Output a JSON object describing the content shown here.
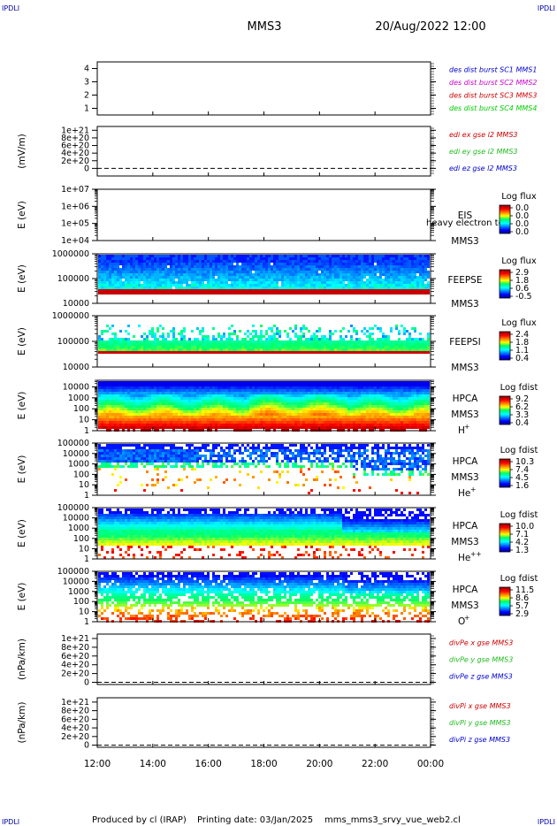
{
  "corner_labels": [
    "IPDLI",
    "IPDLI",
    "IPDLI",
    "IPDLI"
  ],
  "header": {
    "spacecraft": "MMS3",
    "datetime": "20/Aug/2022 12:00"
  },
  "footer": {
    "producer": "Produced by cl (IRAP)",
    "printing": "Printing date: 03/Jan/2025",
    "file": "mms_mms3_srvy_vue_web2.cl"
  },
  "colors": {
    "red": "#cc0000",
    "green": "#22bb22",
    "blue": "#0000cc",
    "magenta": "#cc00cc",
    "lime": "#00cc00"
  },
  "chart_data": [
    {
      "type": "line",
      "ylim": [
        0.5,
        4.5
      ],
      "ytick_labels": [
        "4",
        "3",
        "2",
        "1"
      ],
      "ytick_values": [
        4,
        3,
        2,
        1
      ],
      "legend": [
        {
          "text": "des dist burst SC1 MMS1",
          "color": "#0000cc"
        },
        {
          "text": "des dist burst SC2 MMS2",
          "color": "#cc00cc"
        },
        {
          "text": "des dist burst SC3 MMS3",
          "color": "#cc0000"
        },
        {
          "text": "des dist burst SC4 MMS4",
          "color": "#00cc00"
        }
      ]
    },
    {
      "type": "line",
      "ylabel": "(mV/m)",
      "ylim": [
        -0.2,
        1.1
      ],
      "ytick_labels": [
        "1e+21",
        "8e+20",
        "6e+20",
        "4e+20",
        "2e+20",
        "0"
      ],
      "ytick_values": [
        1.0,
        0.8,
        0.6,
        0.4,
        0.2,
        0
      ],
      "legend": [
        {
          "text": "edi ex gse l2 MMS3",
          "color": "#cc0000"
        },
        {
          "text": "edi ey gse l2 MMS3",
          "color": "#22bb22"
        },
        {
          "text": "edi ez gse l2 MMS3",
          "color": "#0000cc"
        }
      ]
    },
    {
      "type": "heatmap",
      "ylabel": "E (eV)",
      "ylim": [
        10000,
        10000000
      ],
      "ytick_labels": [
        "1e+07",
        "1e+06",
        "1e+05",
        "1e+04"
      ],
      "ytick_values": [
        10000000,
        1000000,
        100000,
        10000
      ],
      "instrument": "EIS",
      "spacecraft": "MMS3",
      "overlay_text": "heavy electron tof",
      "colorbar_title": "Log flux",
      "colorbar_labels": [
        "0.0",
        "0.0",
        "0.0",
        "0.0"
      ],
      "data": "empty"
    },
    {
      "type": "heatmap",
      "ylabel": "E (eV)",
      "ylim": [
        10000,
        1000000
      ],
      "ytick_labels": [
        "1000000",
        "100000",
        "10000"
      ],
      "ytick_values": [
        1000000,
        100000,
        10000
      ],
      "instrument": "FEEPSE",
      "spacecraft": "MMS3",
      "colorbar_title": "Log flux",
      "colorbar_labels": [
        "2.9",
        "1.8",
        "0.6",
        "-0.5"
      ]
    },
    {
      "type": "heatmap",
      "ylabel": "E (eV)",
      "ylim": [
        10000,
        1000000
      ],
      "ytick_labels": [
        "1000000",
        "100000",
        "10000"
      ],
      "ytick_values": [
        1000000,
        100000,
        10000
      ],
      "instrument": "FEEPSI",
      "spacecraft": "MMS3",
      "colorbar_title": "Log flux",
      "colorbar_labels": [
        "2.4",
        "1.8",
        "1.1",
        "0.4"
      ]
    },
    {
      "type": "heatmap",
      "ylabel": "E (eV)",
      "ylim": [
        1,
        40000
      ],
      "ytick_labels": [
        "10000",
        "1000",
        "100",
        "10",
        "1"
      ],
      "ytick_values": [
        10000,
        1000,
        100,
        10,
        1
      ],
      "instrument": "HPCA",
      "spacecraft": "MMS3",
      "species": "H",
      "species_charge": "+",
      "colorbar_title": "Log fdist",
      "colorbar_labels": [
        "9.2",
        "6.2",
        "3.3",
        "0.4"
      ]
    },
    {
      "type": "heatmap",
      "ylabel": "E (eV)",
      "ylim": [
        1,
        100000
      ],
      "ytick_labels": [
        "100000",
        "10000",
        "1000",
        "100",
        "10",
        "1"
      ],
      "ytick_values": [
        100000,
        10000,
        1000,
        100,
        10,
        1
      ],
      "instrument": "HPCA",
      "spacecraft": "MMS3",
      "species": "He",
      "species_charge": "+",
      "colorbar_title": "Log fdist",
      "colorbar_labels": [
        "10.3",
        "7.4",
        "4.5",
        "1.6"
      ]
    },
    {
      "type": "heatmap",
      "ylabel": "E (eV)",
      "ylim": [
        1,
        100000
      ],
      "ytick_labels": [
        "100000",
        "10000",
        "1000",
        "100",
        "10",
        "1"
      ],
      "ytick_values": [
        100000,
        10000,
        1000,
        100,
        10,
        1
      ],
      "instrument": "HPCA",
      "spacecraft": "MMS3",
      "species": "He",
      "species_charge": "++",
      "colorbar_title": "Log fdist",
      "colorbar_labels": [
        "10.0",
        "7.1",
        "4.2",
        "1.3"
      ]
    },
    {
      "type": "heatmap",
      "ylabel": "E (eV)",
      "ylim": [
        1,
        100000
      ],
      "ytick_labels": [
        "100000",
        "10000",
        "1000",
        "100",
        "10",
        "1"
      ],
      "ytick_values": [
        100000,
        10000,
        1000,
        100,
        10,
        1
      ],
      "instrument": "HPCA",
      "spacecraft": "MMS3",
      "species": "O",
      "species_charge": "+",
      "colorbar_title": "Log fdist",
      "colorbar_labels": [
        "11.5",
        "8.6",
        "5.7",
        "2.9"
      ]
    },
    {
      "type": "line",
      "ylabel": "(nPa/km)",
      "ylim": [
        -0.05,
        1.1
      ],
      "ytick_labels": [
        "1e+21",
        "8e+20",
        "6e+20",
        "4e+20",
        "2e+20",
        "0"
      ],
      "ytick_values": [
        1.0,
        0.8,
        0.6,
        0.4,
        0.2,
        0
      ],
      "legend": [
        {
          "text": "divPe x gse MMS3",
          "color": "#cc0000"
        },
        {
          "text": "divPe y gse MMS3",
          "color": "#22bb22"
        },
        {
          "text": "divPe z gse MMS3",
          "color": "#0000cc"
        }
      ]
    },
    {
      "type": "line",
      "ylabel": "(nPa/km)",
      "ylim": [
        -0.05,
        1.1
      ],
      "ytick_labels": [
        "1e+21",
        "8e+20",
        "6e+20",
        "4e+20",
        "2e+20",
        "0"
      ],
      "ytick_values": [
        1.0,
        0.8,
        0.6,
        0.4,
        0.2,
        0
      ],
      "legend": [
        {
          "text": "divPi x gse MMS3",
          "color": "#cc0000"
        },
        {
          "text": "divPi y gse MMS3",
          "color": "#22bb22"
        },
        {
          "text": "divPi z gse MMS3",
          "color": "#0000cc"
        }
      ]
    }
  ],
  "xaxis": {
    "tick_labels": [
      "12:00",
      "14:00",
      "16:00",
      "18:00",
      "20:00",
      "22:00",
      "00:00"
    ],
    "tick_hours": [
      0,
      2,
      4,
      6,
      8,
      10,
      12
    ],
    "range_hours": [
      0,
      12
    ]
  }
}
